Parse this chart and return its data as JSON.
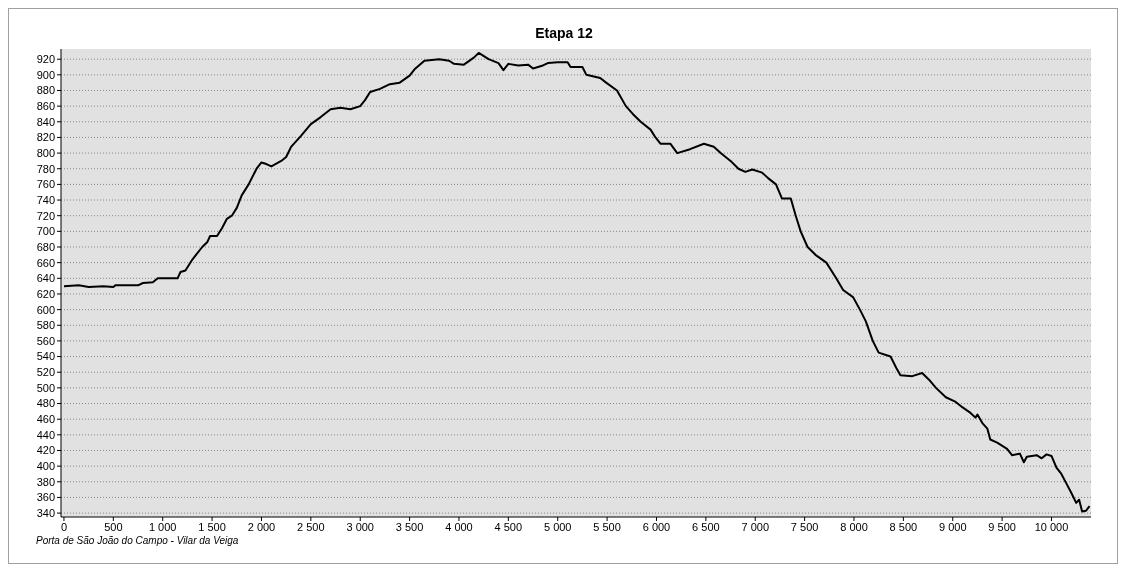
{
  "chart_data": {
    "type": "line",
    "title": "Etapa 12",
    "annotations": [
      "Porta de São João do Campo - Vilar da Veiga"
    ],
    "x": [
      0,
      150,
      250,
      400,
      500,
      520,
      750,
      800,
      900,
      950,
      1150,
      1180,
      1230,
      1300,
      1400,
      1450,
      1480,
      1550,
      1600,
      1650,
      1700,
      1750,
      1800,
      1870,
      1950,
      2000,
      2050,
      2100,
      2200,
      2250,
      2300,
      2400,
      2500,
      2600,
      2700,
      2800,
      2900,
      3000,
      3050,
      3100,
      3200,
      3300,
      3400,
      3500,
      3550,
      3650,
      3800,
      3900,
      3950,
      4050,
      4150,
      4200,
      4300,
      4400,
      4450,
      4500,
      4600,
      4700,
      4750,
      4850,
      4900,
      5000,
      5100,
      5130,
      5250,
      5290,
      5430,
      5490,
      5600,
      5690,
      5760,
      5840,
      5940,
      5990,
      6040,
      6140,
      6210,
      6340,
      6480,
      6580,
      6650,
      6750,
      6830,
      6900,
      6970,
      7070,
      7130,
      7210,
      7270,
      7360,
      7410,
      7460,
      7530,
      7610,
      7720,
      7820,
      7890,
      7990,
      8060,
      8120,
      8190,
      8250,
      8370,
      8430,
      8470,
      8590,
      8690,
      8770,
      8830,
      8930,
      9030,
      9100,
      9180,
      9230,
      9250,
      9300,
      9350,
      9380,
      9450,
      9550,
      9600,
      9680,
      9720,
      9750,
      9850,
      9900,
      9950,
      10000,
      10050,
      10100,
      10150,
      10200,
      10250,
      10280,
      10310,
      10350,
      10385
    ],
    "series": [
      {
        "color": "#000000",
        "values": [
          630,
          631,
          629,
          630,
          629,
          631,
          631,
          634,
          635,
          640,
          640,
          648,
          650,
          664,
          680,
          686,
          694,
          694,
          704,
          716,
          720,
          730,
          746,
          760,
          780,
          788,
          786,
          783,
          790,
          795,
          808,
          822,
          837,
          846,
          856,
          858,
          856,
          860,
          868,
          878,
          882,
          888,
          890,
          899,
          907,
          918,
          920,
          918,
          914,
          913,
          922,
          928,
          920,
          915,
          906,
          914,
          912,
          913,
          908,
          912,
          915,
          916,
          916,
          910,
          910,
          900,
          896,
          890,
          880,
          860,
          850,
          840,
          830,
          820,
          812,
          812,
          800,
          805,
          812,
          808,
          800,
          790,
          780,
          776,
          779,
          775,
          768,
          760,
          742,
          742,
          720,
          700,
          680,
          670,
          660,
          640,
          625,
          616,
          600,
          585,
          560,
          545,
          540,
          525,
          516,
          515,
          519,
          509,
          500,
          488,
          482,
          475,
          468,
          462,
          466,
          455,
          448,
          434,
          430,
          422,
          414,
          416,
          405,
          412,
          414,
          410,
          415,
          413,
          398,
          390,
          378,
          366,
          353,
          357,
          342,
          343,
          349
        ]
      }
    ],
    "xlim": [
      -30,
      10400
    ],
    "ylim": [
      335,
      933
    ],
    "xticks": [
      0,
      500,
      {
        "value": 1000,
        "label": "1 000"
      },
      {
        "value": 1500,
        "label": "1 500"
      },
      {
        "value": 2000,
        "label": "2 000"
      },
      {
        "value": 2500,
        "label": "2 500"
      },
      {
        "value": 3000,
        "label": "3 000"
      },
      {
        "value": 3500,
        "label": "3 500"
      },
      {
        "value": 4000,
        "label": "4 000"
      },
      {
        "value": 4500,
        "label": "4 500"
      },
      {
        "value": 5000,
        "label": "5 000"
      },
      {
        "value": 5500,
        "label": "5 500"
      },
      {
        "value": 6000,
        "label": "6 000"
      },
      {
        "value": 6500,
        "label": "6 500"
      },
      {
        "value": 7000,
        "label": "7 000"
      },
      {
        "value": 7500,
        "label": "7 500"
      },
      {
        "value": 8000,
        "label": "8 000"
      },
      {
        "value": 8500,
        "label": "8 500"
      },
      {
        "value": 9000,
        "label": "9 000"
      },
      {
        "value": 9500,
        "label": "9 500"
      },
      {
        "value": 10000,
        "label": "10 000"
      }
    ],
    "yticks": [
      340,
      360,
      380,
      400,
      420,
      440,
      460,
      480,
      500,
      520,
      540,
      560,
      580,
      600,
      620,
      640,
      660,
      680,
      700,
      720,
      740,
      760,
      780,
      800,
      820,
      840,
      860,
      880,
      900,
      920
    ],
    "grid": "y",
    "legend": false,
    "marker": "none",
    "line_style": "solid"
  }
}
